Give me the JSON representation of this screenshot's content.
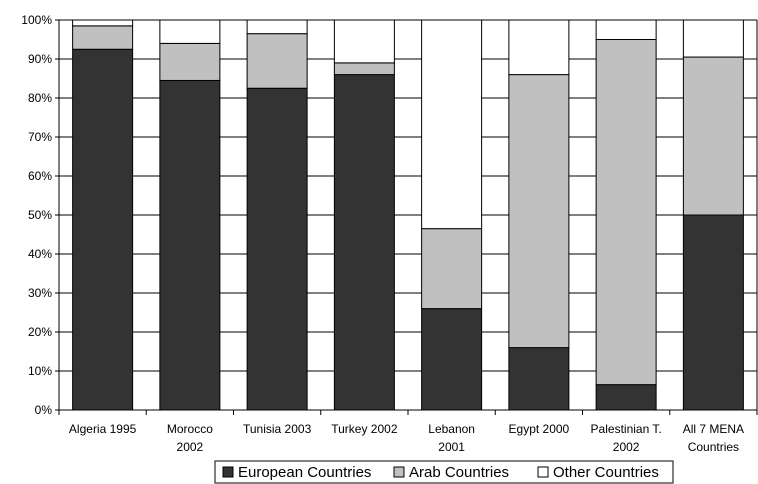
{
  "chart_data": {
    "type": "bar",
    "stacked": true,
    "categories": [
      [
        "Algeria 1995"
      ],
      [
        "Morocco",
        "2002"
      ],
      [
        "Tunisia 2003"
      ],
      [
        "Turkey 2002"
      ],
      [
        "Lebanon",
        "2001"
      ],
      [
        "Egypt 2000"
      ],
      [
        "Palestinian T.",
        "2002"
      ],
      [
        "All 7 MENA",
        "Countries"
      ]
    ],
    "series": [
      {
        "name": "European Countries",
        "color": "#333333",
        "values": [
          92.5,
          84.5,
          82.5,
          86,
          26,
          16,
          6.5,
          50
        ]
      },
      {
        "name": "Arab Countries",
        "color": "#c0c0c0",
        "values": [
          6,
          9.5,
          14,
          3,
          20.5,
          70,
          88.5,
          40.5
        ]
      },
      {
        "name": "Other Countries",
        "color": "#ffffff",
        "values": [
          1.5,
          6,
          3.5,
          11,
          53.5,
          14,
          5,
          9.5
        ]
      }
    ],
    "yticks": [
      "0%",
      "10%",
      "20%",
      "30%",
      "40%",
      "50%",
      "60%",
      "70%",
      "80%",
      "90%",
      "100%"
    ],
    "ylim": [
      0,
      100
    ],
    "grid": true,
    "legend_position": "bottom"
  }
}
